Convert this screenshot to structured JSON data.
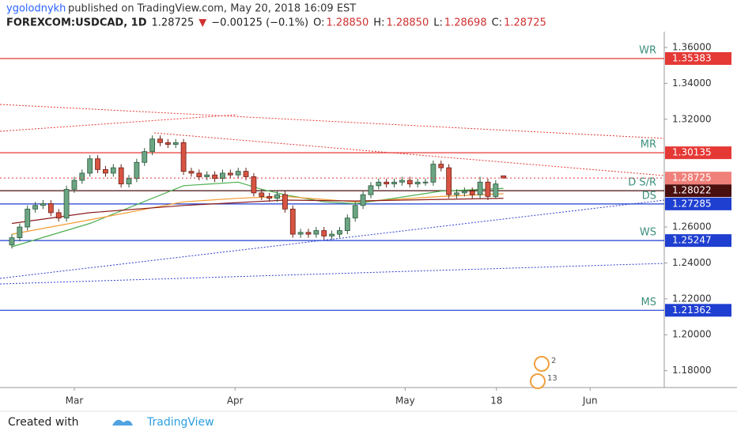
{
  "header": {
    "author": "ygolodnykh",
    "published": "published on TradingView.com, May 20, 2018 16:09 EST",
    "symbol": "FOREXCOM:USDCAD, 1D",
    "last": "1.28725",
    "arrow": "▼",
    "change": "−0.00125 (−0.1%)",
    "o_label": "O:",
    "o": "1.28850",
    "h_label": "H:",
    "h": "1.28850",
    "l_label": "L:",
    "l": "1.28698",
    "c_label": "C:",
    "c": "1.28725"
  },
  "footer": {
    "created": "Created with",
    "brand": "TradingView"
  },
  "chart_data": {
    "type": "candlestick",
    "open": [
      1.25,
      1.254,
      1.26,
      1.27,
      1.272,
      1.273,
      1.268,
      1.265,
      1.281,
      1.286,
      1.29,
      1.298,
      1.292,
      1.29,
      1.293,
      1.284,
      1.287,
      1.296,
      1.302,
      1.309,
      1.307,
      1.306,
      1.307,
      1.291,
      1.29,
      1.288,
      1.289,
      1.287,
      1.29,
      1.289,
      1.291,
      1.288,
      1.279,
      1.277,
      1.276,
      1.278,
      1.27,
      1.256,
      1.257,
      1.256,
      1.258,
      1.255,
      1.256,
      1.258,
      1.265,
      1.272,
      1.278,
      1.283,
      1.285,
      1.284,
      1.285,
      1.286,
      1.284,
      1.285,
      1.285,
      1.295,
      1.293,
      1.278,
      1.279,
      1.28,
      1.278,
      1.285,
      1.277,
      1.2885
    ],
    "high": [
      1.256,
      1.262,
      1.272,
      1.274,
      1.275,
      1.275,
      1.27,
      1.283,
      1.288,
      1.292,
      1.3,
      1.3,
      1.294,
      1.295,
      1.295,
      1.289,
      1.298,
      1.304,
      1.311,
      1.311,
      1.309,
      1.309,
      1.309,
      1.293,
      1.292,
      1.291,
      1.291,
      1.292,
      1.292,
      1.293,
      1.293,
      1.29,
      1.281,
      1.279,
      1.28,
      1.28,
      1.272,
      1.259,
      1.259,
      1.26,
      1.26,
      1.258,
      1.26,
      1.267,
      1.274,
      1.28,
      1.285,
      1.287,
      1.287,
      1.287,
      1.288,
      1.288,
      1.287,
      1.287,
      1.297,
      1.297,
      1.295,
      1.281,
      1.282,
      1.282,
      1.288,
      1.287,
      1.286,
      1.2885
    ],
    "low": [
      1.248,
      1.252,
      1.258,
      1.268,
      1.27,
      1.266,
      1.263,
      1.263,
      1.279,
      1.284,
      1.288,
      1.29,
      1.288,
      1.288,
      1.282,
      1.282,
      1.285,
      1.294,
      1.3,
      1.305,
      1.304,
      1.304,
      1.289,
      1.288,
      1.286,
      1.286,
      1.285,
      1.285,
      1.287,
      1.287,
      1.286,
      1.277,
      1.275,
      1.274,
      1.274,
      1.268,
      1.254,
      1.254,
      1.254,
      1.254,
      1.253,
      1.253,
      1.254,
      1.256,
      1.263,
      1.27,
      1.276,
      1.281,
      1.282,
      1.282,
      1.283,
      1.282,
      1.282,
      1.283,
      1.283,
      1.291,
      1.276,
      1.276,
      1.277,
      1.276,
      1.276,
      1.275,
      1.276,
      1.28698
    ],
    "close": [
      1.254,
      1.26,
      1.27,
      1.272,
      1.273,
      1.268,
      1.265,
      1.281,
      1.286,
      1.29,
      1.298,
      1.292,
      1.29,
      1.293,
      1.284,
      1.287,
      1.296,
      1.302,
      1.309,
      1.307,
      1.306,
      1.307,
      1.291,
      1.29,
      1.288,
      1.289,
      1.287,
      1.29,
      1.289,
      1.291,
      1.288,
      1.279,
      1.277,
      1.276,
      1.278,
      1.27,
      1.256,
      1.257,
      1.256,
      1.258,
      1.255,
      1.256,
      1.258,
      1.265,
      1.272,
      1.278,
      1.283,
      1.285,
      1.284,
      1.285,
      1.286,
      1.284,
      1.285,
      1.285,
      1.295,
      1.293,
      1.278,
      1.279,
      1.28,
      1.278,
      1.285,
      1.277,
      1.284,
      1.28725
    ],
    "up_color": "#6ba583",
    "down_color": "#d75442",
    "last_color": "#f0807a",
    "ylim": [
      1.1706,
      1.3688
    ],
    "yticks": [
      {
        "value": 1.36,
        "label": "1.36000"
      },
      {
        "value": 1.34,
        "label": "1.34000"
      },
      {
        "value": 1.32,
        "label": "1.32000"
      },
      {
        "value": 1.26,
        "label": "1.26000"
      },
      {
        "value": 1.24,
        "label": "1.24000"
      },
      {
        "value": 1.22,
        "label": "1.22000"
      },
      {
        "value": 1.2,
        "label": "1.20000"
      },
      {
        "value": 1.18,
        "label": "1.18000"
      }
    ],
    "xlim": [
      -1.52,
      83.6
    ],
    "xticks": [
      {
        "value": 8,
        "label": "Mar"
      },
      {
        "value": 28.6,
        "label": "Apr"
      },
      {
        "value": 50.4,
        "label": "May"
      },
      {
        "value": 62.1,
        "label": "18"
      },
      {
        "value": 74.1,
        "label": "Jun"
      }
    ],
    "levels": [
      {
        "name": "WR",
        "value": 1.35383,
        "color": "#e53935"
      },
      {
        "name": "MR",
        "value": 1.30135,
        "color": "#e53935"
      },
      {
        "name": "D S/R",
        "value": 1.28022,
        "color": "#4a0f0f"
      },
      {
        "name": "DS",
        "value": 1.27285,
        "color": "#1f3fd0"
      },
      {
        "name": "WS",
        "value": 1.25247,
        "color": "#1f3fd0"
      },
      {
        "name": "MS",
        "value": 1.21362,
        "color": "#1f3fd0"
      }
    ],
    "lines": [
      {
        "color": "#4caf50",
        "x": [
          0,
          10,
          22,
          29,
          32,
          35,
          40,
          44,
          49,
          55,
          63
        ],
        "values": [
          1.249,
          1.262,
          1.283,
          1.285,
          1.281,
          1.278,
          1.274,
          1.273,
          1.276,
          1.28,
          1.2815
        ]
      },
      {
        "color": "#f39c32",
        "x": [
          0,
          10,
          22,
          29,
          35,
          44,
          55,
          63
        ],
        "values": [
          1.256,
          1.264,
          1.274,
          1.276,
          1.277,
          1.274,
          1.277,
          1.2785
        ]
      },
      {
        "color": "#8b1c1c",
        "x": [
          0,
          10,
          22,
          35,
          44,
          63
        ],
        "values": [
          1.262,
          1.268,
          1.272,
          1.275,
          1.2745,
          1.276
        ]
      }
    ],
    "events": [
      "2",
      "13"
    ]
  }
}
